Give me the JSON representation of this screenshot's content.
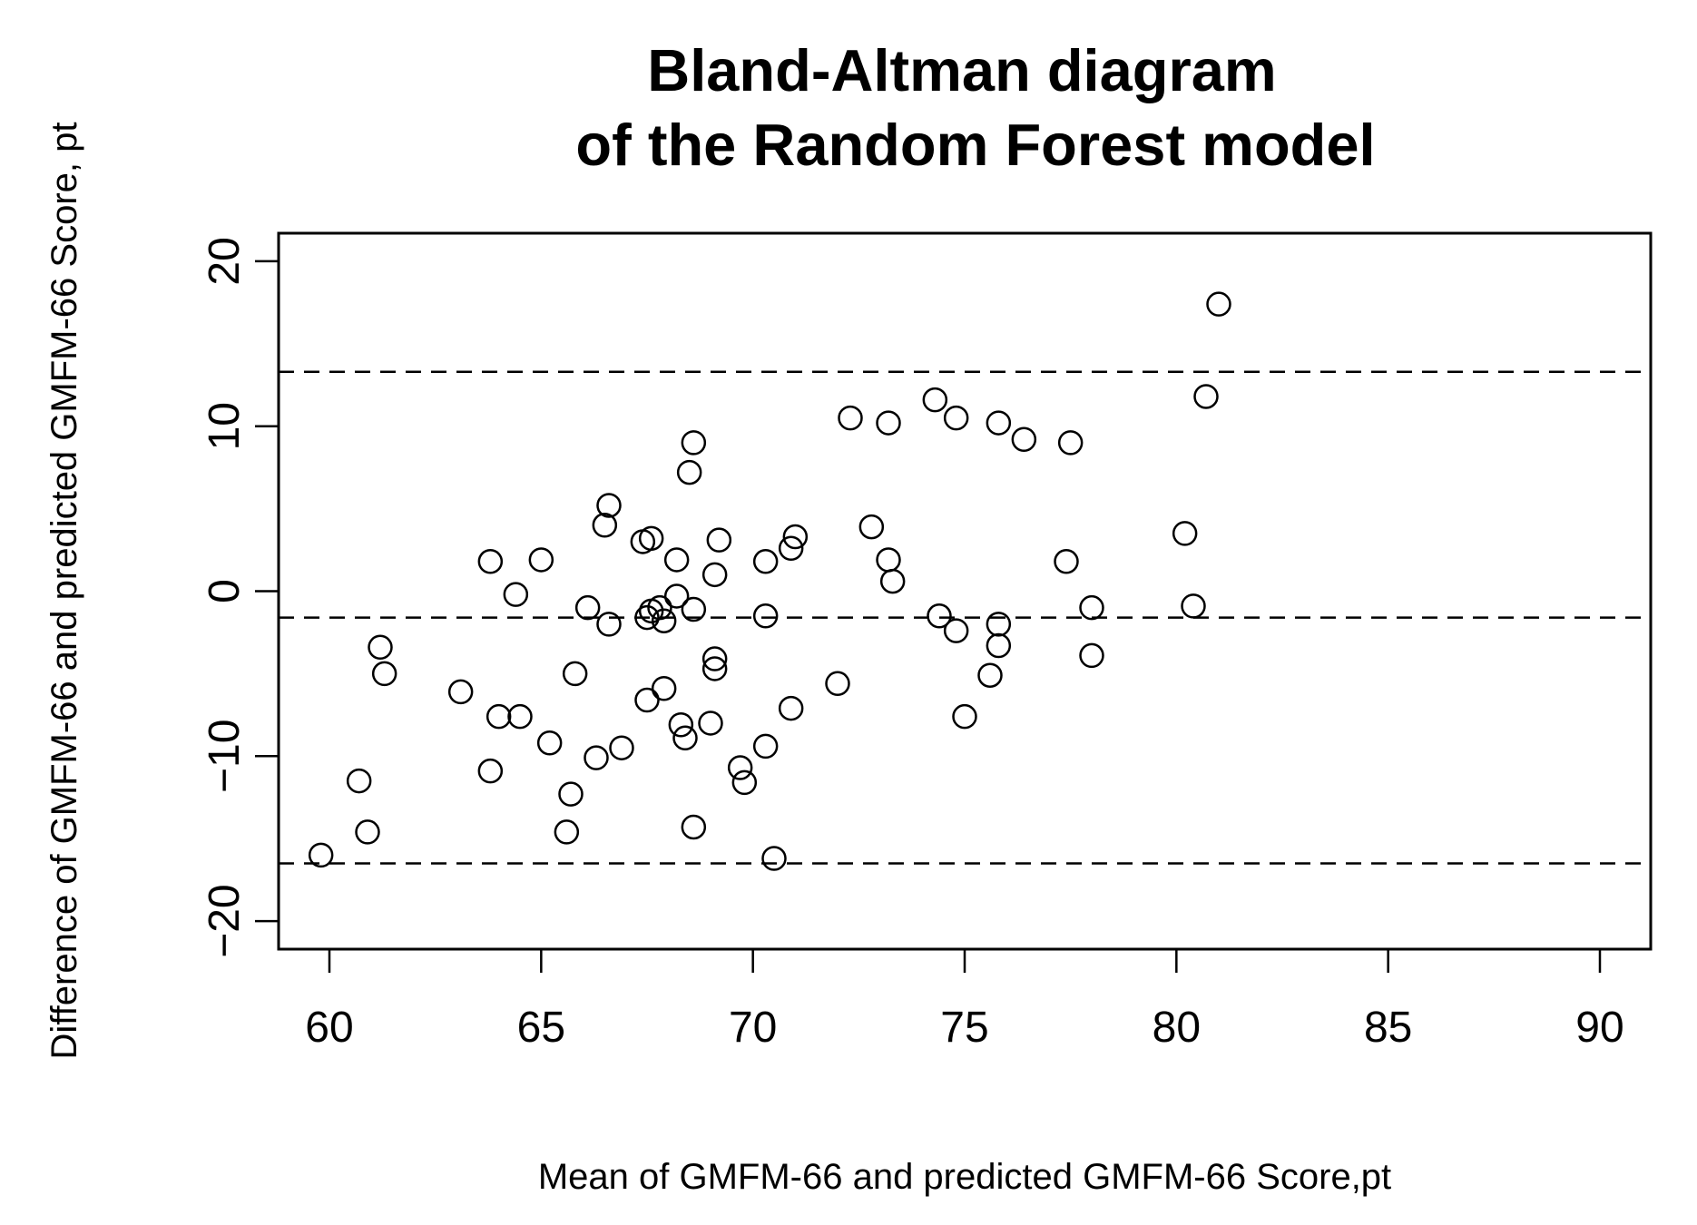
{
  "chart_data": {
    "type": "scatter",
    "title_lines": [
      "Bland-Altman diagram",
      "of the Random Forest model"
    ],
    "xlabel": "Mean of GMFM-66 and predicted GMFM-66 Score,pt",
    "ylabel": "Difference of GMFM-66 and predicted GMFM-66 Score, pt",
    "xlim": [
      58.8,
      91.2
    ],
    "ylim": [
      -21.7,
      21.7
    ],
    "xticks": [
      60,
      65,
      70,
      75,
      80,
      85,
      90
    ],
    "yticks": [
      -20,
      -10,
      0,
      10,
      20
    ],
    "reference_lines": [
      {
        "name": "upper-loa-line",
        "y": 13.3
      },
      {
        "name": "mean-difference-line",
        "y": -1.6
      },
      {
        "name": "lower-loa-line",
        "y": -16.5
      }
    ],
    "grid": false,
    "marker": "open-circle",
    "points": [
      [
        59.8,
        -16.0
      ],
      [
        60.7,
        -11.5
      ],
      [
        60.9,
        -14.6
      ],
      [
        61.2,
        -3.4
      ],
      [
        61.3,
        -5.0
      ],
      [
        63.1,
        -6.1
      ],
      [
        63.8,
        1.8
      ],
      [
        63.8,
        -10.9
      ],
      [
        64.0,
        -7.6
      ],
      [
        64.4,
        -0.2
      ],
      [
        64.5,
        -7.6
      ],
      [
        65.0,
        1.9
      ],
      [
        65.2,
        -9.2
      ],
      [
        65.6,
        -14.6
      ],
      [
        65.7,
        -12.3
      ],
      [
        65.8,
        -5.0
      ],
      [
        66.1,
        -1.0
      ],
      [
        66.3,
        -10.1
      ],
      [
        66.5,
        4.0
      ],
      [
        66.6,
        5.2
      ],
      [
        66.6,
        -2.0
      ],
      [
        66.9,
        -9.5
      ],
      [
        67.4,
        3.0
      ],
      [
        67.5,
        -1.6
      ],
      [
        67.5,
        -6.6
      ],
      [
        67.6,
        3.2
      ],
      [
        67.6,
        -1.2
      ],
      [
        67.8,
        -1.0
      ],
      [
        67.9,
        -5.9
      ],
      [
        67.9,
        -1.8
      ],
      [
        68.2,
        1.9
      ],
      [
        68.2,
        -0.3
      ],
      [
        68.3,
        -8.1
      ],
      [
        68.4,
        -8.9
      ],
      [
        68.5,
        7.2
      ],
      [
        68.6,
        9.0
      ],
      [
        68.6,
        -1.1
      ],
      [
        68.6,
        -14.3
      ],
      [
        69.0,
        -8.0
      ],
      [
        69.1,
        -4.1
      ],
      [
        69.1,
        1.0
      ],
      [
        69.1,
        -4.7
      ],
      [
        69.2,
        3.1
      ],
      [
        69.7,
        -10.7
      ],
      [
        69.8,
        -11.6
      ],
      [
        70.3,
        1.8
      ],
      [
        70.3,
        -9.4
      ],
      [
        70.3,
        -1.5
      ],
      [
        70.5,
        -16.2
      ],
      [
        70.9,
        2.6
      ],
      [
        70.9,
        -7.1
      ],
      [
        71.0,
        3.3
      ],
      [
        72.0,
        -5.6
      ],
      [
        72.3,
        10.5
      ],
      [
        72.8,
        3.9
      ],
      [
        73.2,
        10.2
      ],
      [
        73.2,
        1.9
      ],
      [
        73.3,
        0.6
      ],
      [
        74.3,
        11.6
      ],
      [
        74.4,
        -1.5
      ],
      [
        74.8,
        10.5
      ],
      [
        74.8,
        -2.4
      ],
      [
        75.0,
        -7.6
      ],
      [
        75.6,
        -5.1
      ],
      [
        75.8,
        10.2
      ],
      [
        75.8,
        -2.0
      ],
      [
        75.8,
        -3.3
      ],
      [
        76.4,
        9.2
      ],
      [
        77.4,
        1.8
      ],
      [
        77.5,
        9.0
      ],
      [
        78.0,
        -1.0
      ],
      [
        78.0,
        -3.9
      ],
      [
        80.2,
        3.5
      ],
      [
        80.4,
        -0.9
      ],
      [
        80.7,
        11.8
      ],
      [
        81.0,
        17.4
      ]
    ]
  }
}
